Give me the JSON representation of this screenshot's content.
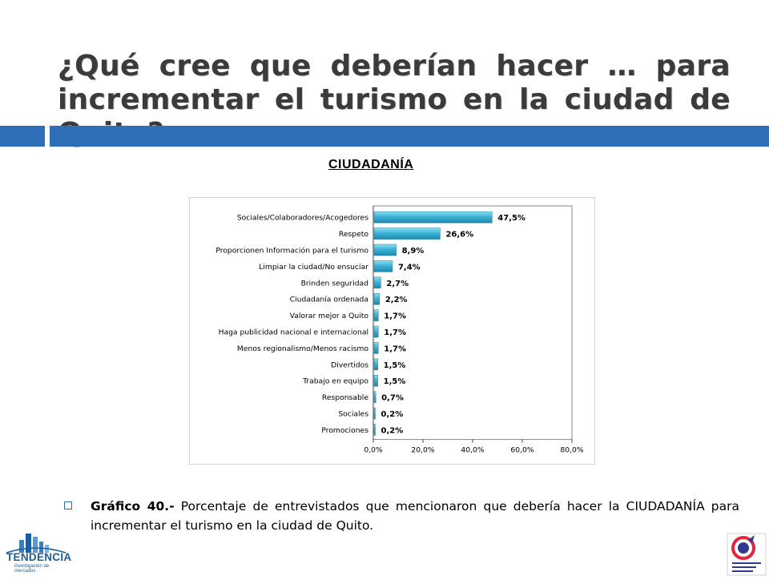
{
  "slide": {
    "title": "¿Qué cree que deberían hacer … para incrementar el turismo en la ciudad de Quito?",
    "subtitle": "CIUDADANÍA",
    "caption_label": "Gráfico 40.-",
    "caption_text": " Porcentaje de entrevistados que mencionaron que debería hacer la CIUDADANÍA para incrementar el turismo en la ciudad de Quito.",
    "accent_color": "#2e6fb8",
    "title_color": "#3b3b3b"
  },
  "logos": {
    "left_name": "TENDENCIA",
    "left_tagline": "investigación de mercados",
    "right_logo_text": "Empresa Metropolitana Quito Turismo"
  },
  "chart_data": {
    "type": "bar",
    "orientation": "horizontal",
    "categories": [
      "Sociales/Colaboradores/Acogedores",
      "Respeto",
      "Proporcionen Información para el turismo",
      "Limpiar la ciudad/No ensuciar",
      "Brinden seguridad",
      "Ciudadanía ordenada",
      "Valorar mejor a Quito",
      "Haga publicidad nacional e internacional",
      "Menos regionalismo/Menos racismo",
      "Divertidos",
      "Trabajo en equipo",
      "Responsable",
      "Sociales",
      "Promociones"
    ],
    "values": [
      47.5,
      26.6,
      8.9,
      7.4,
      2.7,
      2.2,
      1.7,
      1.7,
      1.7,
      1.5,
      1.5,
      0.7,
      0.2,
      0.2
    ],
    "data_labels": [
      "47,5%",
      "26,6%",
      "8,9%",
      "7,4%",
      "2,7%",
      "2,2%",
      "1,7%",
      "1,7%",
      "1,7%",
      "1,5%",
      "1,5%",
      "0,7%",
      "0,2%",
      "0,2%"
    ],
    "xlim": [
      0,
      80
    ],
    "x_ticks": [
      "0,0%",
      "20,0%",
      "40,0%",
      "60,0%",
      "80,0%"
    ],
    "grid": false,
    "bar_color": "#3bb3d6"
  }
}
